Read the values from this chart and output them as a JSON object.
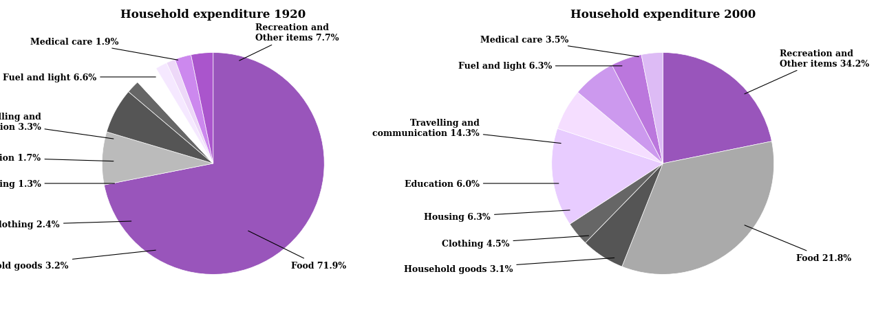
{
  "chart1": {
    "title": "Household expenditure 1920",
    "values": [
      71.9,
      7.7,
      6.6,
      1.9,
      3.3,
      1.7,
      1.3,
      2.4,
      3.2
    ],
    "colors": [
      "#9955BB",
      "#BBBBBB",
      "#555555",
      "#666666",
      "#FFFFFF",
      "#F5E8FF",
      "#EDD8F8",
      "#CC88EE",
      "#AA55CC"
    ],
    "startangle": 90
  },
  "chart2": {
    "title": "Household expenditure 2000",
    "values": [
      21.8,
      34.2,
      6.3,
      3.5,
      14.3,
      6.0,
      6.3,
      4.5,
      3.1
    ],
    "colors": [
      "#9955BB",
      "#AAAAAA",
      "#555555",
      "#666666",
      "#E8CCFF",
      "#F5DEFF",
      "#CC99EE",
      "#BB77DD",
      "#DDBBF5"
    ],
    "startangle": 90
  },
  "bg_color": "#FFFFFF",
  "title_fontsize": 12,
  "label_fontsize": 9,
  "figsize": [
    12.73,
    4.64
  ]
}
